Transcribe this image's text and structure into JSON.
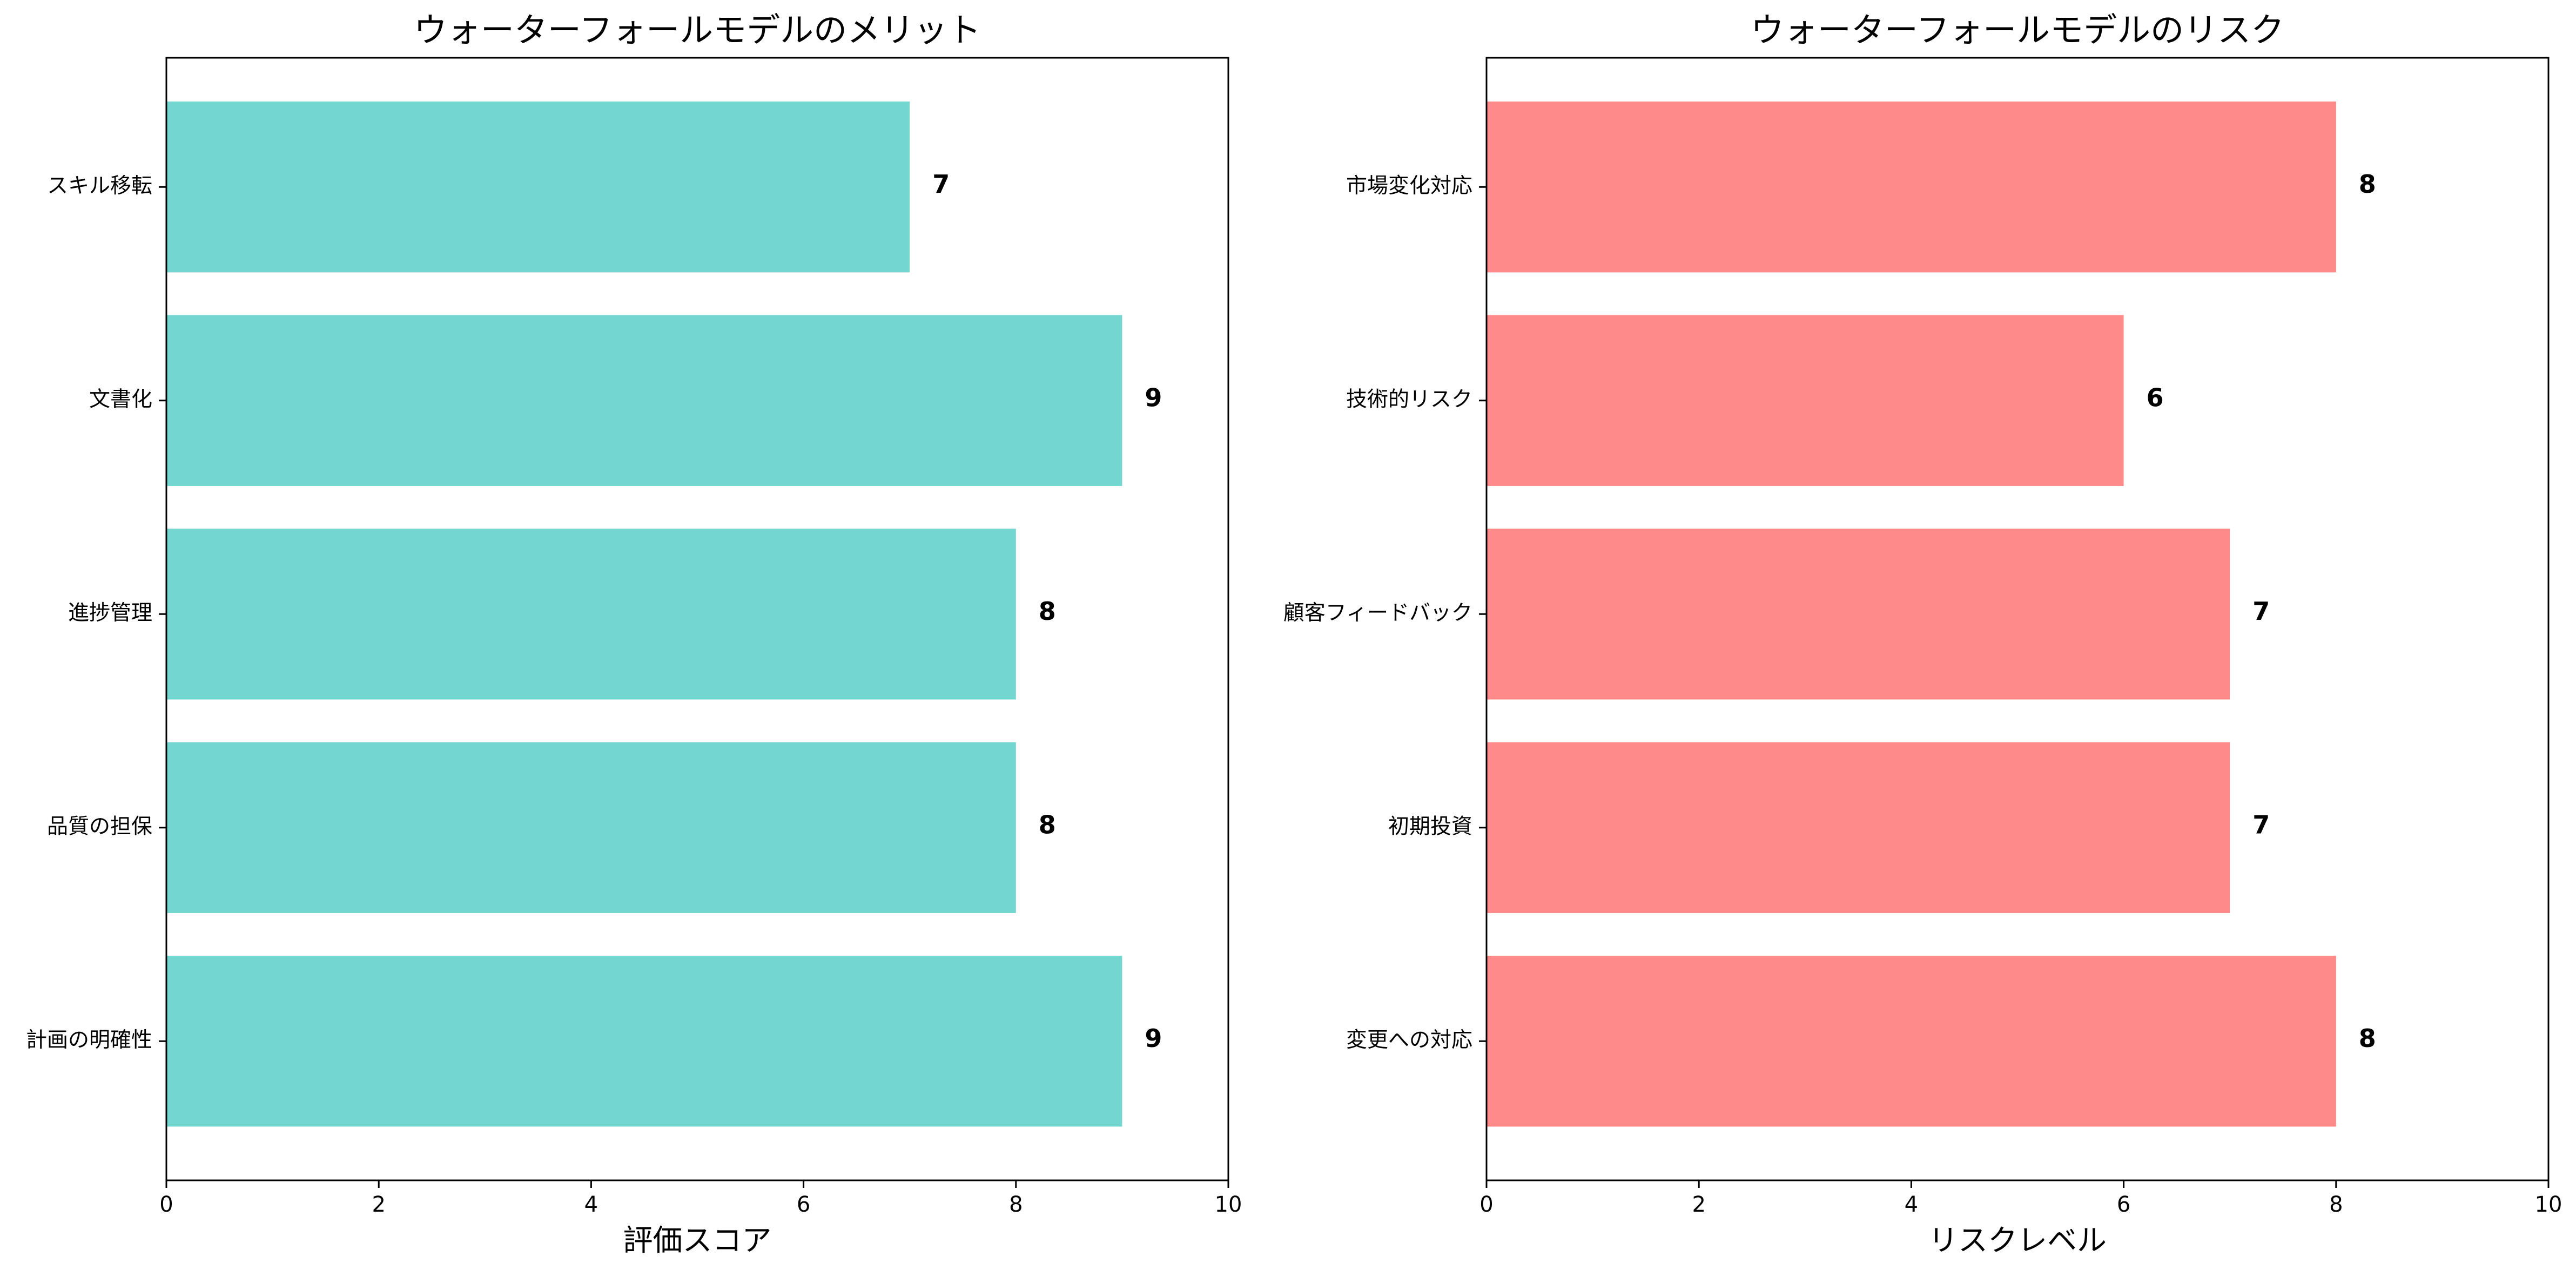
{
  "chart_data": [
    {
      "type": "bar",
      "orientation": "horizontal",
      "title": "ウォーターフォールモデルのメリット",
      "xlabel": "評価スコア",
      "ylabel": "",
      "xlim": [
        0,
        10
      ],
      "xticks": [
        0,
        2,
        4,
        6,
        8,
        10
      ],
      "categories": [
        "計画の明確性",
        "品質の担保",
        "進捗管理",
        "文書化",
        "スキル移転"
      ],
      "values": [
        9,
        8,
        8,
        9,
        7
      ],
      "color": "#74d7cf",
      "data_labels": true,
      "grid": false,
      "legend": false
    },
    {
      "type": "bar",
      "orientation": "horizontal",
      "title": "ウォーターフォールモデルのリスク",
      "xlabel": "リスクレベル",
      "ylabel": "",
      "xlim": [
        0,
        10
      ],
      "xticks": [
        0,
        2,
        4,
        6,
        8,
        10
      ],
      "categories": [
        "変更への対応",
        "初期投資",
        "顧客フィードバック",
        "技術的リスク",
        "市場変化対応"
      ],
      "values": [
        8,
        7,
        7,
        6,
        8
      ],
      "color": "#ff8a89",
      "data_labels": true,
      "grid": false,
      "legend": false
    }
  ]
}
